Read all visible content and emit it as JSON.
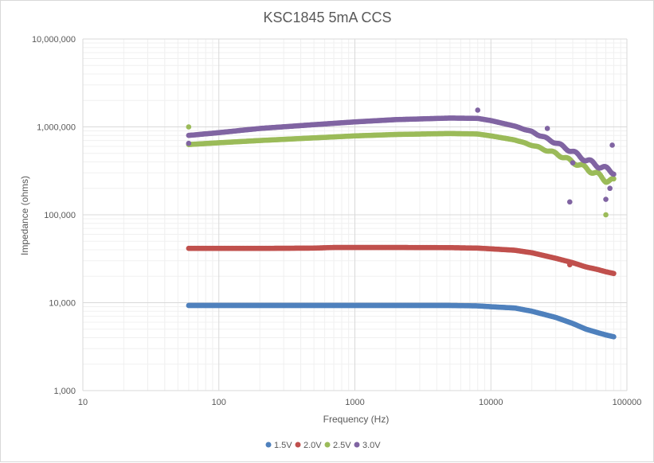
{
  "chart_data": {
    "type": "scatter",
    "title": "KSC1845 5mA CCS",
    "xlabel": "Frequency (Hz)",
    "ylabel": "Impedance (ohms)",
    "x_scale": "log",
    "y_scale": "log",
    "xlim": [
      10,
      100000
    ],
    "ylim": [
      1000,
      10000000
    ],
    "grid": true,
    "legend_position": "bottom",
    "x_ticks": [
      "10",
      "100",
      "1000",
      "10000",
      "100000"
    ],
    "y_ticks": [
      "1,000",
      "10,000",
      "100,000",
      "1,000,000",
      "10,000,000"
    ],
    "series": [
      {
        "name": "1.5V",
        "color": "#4f81bd",
        "points": [
          [
            60,
            9300
          ],
          [
            100,
            9300
          ],
          [
            200,
            9300
          ],
          [
            500,
            9300
          ],
          [
            1000,
            9300
          ],
          [
            2000,
            9300
          ],
          [
            5000,
            9300
          ],
          [
            8000,
            9200
          ],
          [
            10000,
            9000
          ],
          [
            15000,
            8700
          ],
          [
            20000,
            8000
          ],
          [
            30000,
            6800
          ],
          [
            40000,
            5800
          ],
          [
            50000,
            5000
          ],
          [
            60000,
            4600
          ],
          [
            70000,
            4300
          ],
          [
            80000,
            4100
          ]
        ],
        "outliers": []
      },
      {
        "name": "2.0V",
        "color": "#c0504d",
        "points": [
          [
            60,
            41500
          ],
          [
            100,
            41500
          ],
          [
            200,
            41500
          ],
          [
            500,
            41800
          ],
          [
            700,
            42500
          ],
          [
            1000,
            42500
          ],
          [
            2000,
            42500
          ],
          [
            5000,
            42300
          ],
          [
            8000,
            41800
          ],
          [
            10000,
            41000
          ],
          [
            15000,
            39500
          ],
          [
            20000,
            37000
          ],
          [
            30000,
            32000
          ],
          [
            40000,
            28500
          ],
          [
            50000,
            25500
          ],
          [
            60000,
            24000
          ],
          [
            70000,
            22500
          ],
          [
            80000,
            21500
          ]
        ],
        "outliers": [
          [
            38000,
            27000
          ]
        ]
      },
      {
        "name": "2.5V",
        "color": "#9bbb59",
        "points": [
          [
            60,
            630000
          ],
          [
            100,
            660000
          ],
          [
            200,
            700000
          ],
          [
            500,
            750000
          ],
          [
            1000,
            790000
          ],
          [
            2000,
            820000
          ],
          [
            5000,
            840000
          ],
          [
            8000,
            830000
          ],
          [
            10000,
            790000
          ],
          [
            15000,
            710000
          ],
          [
            20000,
            620000
          ],
          [
            30000,
            500000
          ],
          [
            40000,
            400000
          ],
          [
            50000,
            340000
          ],
          [
            60000,
            290000
          ],
          [
            70000,
            250000
          ],
          [
            80000,
            240000
          ]
        ],
        "outliers": [
          [
            60,
            1000000
          ],
          [
            70000,
            100000
          ]
        ]
      },
      {
        "name": "3.0V",
        "color": "#8064a2",
        "points": [
          [
            60,
            800000
          ],
          [
            100,
            860000
          ],
          [
            200,
            960000
          ],
          [
            500,
            1060000
          ],
          [
            1000,
            1140000
          ],
          [
            2000,
            1210000
          ],
          [
            5000,
            1260000
          ],
          [
            8000,
            1250000
          ],
          [
            10000,
            1180000
          ],
          [
            15000,
            1020000
          ],
          [
            20000,
            880000
          ],
          [
            30000,
            660000
          ],
          [
            40000,
            520000
          ],
          [
            50000,
            420000
          ],
          [
            60000,
            370000
          ],
          [
            70000,
            330000
          ],
          [
            80000,
            310000
          ]
        ],
        "outliers": [
          [
            60,
            650000
          ],
          [
            8000,
            1550000
          ],
          [
            38000,
            140000
          ],
          [
            40000,
            390000
          ],
          [
            70000,
            150000
          ],
          [
            75000,
            200000
          ],
          [
            78000,
            620000
          ],
          [
            26000,
            960000
          ]
        ]
      }
    ]
  }
}
